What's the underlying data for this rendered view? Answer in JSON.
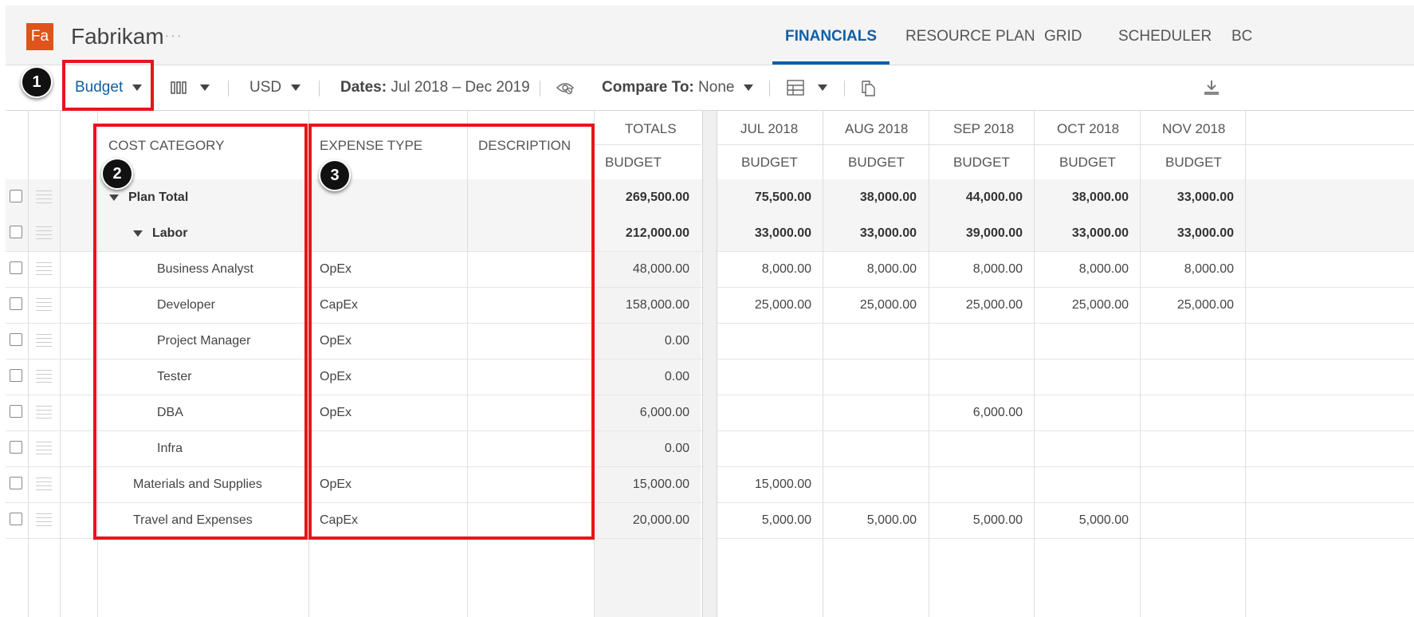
{
  "header": {
    "logo_text": "Fa",
    "project_name": "Fabrikam",
    "more_dots": "···",
    "tabs": [
      "FINANCIALS",
      "RESOURCE PLAN",
      "GRID",
      "SCHEDULER",
      "BC"
    ]
  },
  "toolbar": {
    "view_label": "Budget",
    "currency": "USD",
    "dates_label": "Dates:",
    "dates_value": "Jul 2018 – Dec 2019",
    "compare_label": "Compare To:",
    "compare_value": "None"
  },
  "badges": [
    "1",
    "2",
    "3"
  ],
  "grid": {
    "col_cost_category": "COST CATEGORY",
    "col_expense_type": "EXPENSE TYPE",
    "col_description": "DESCRIPTION",
    "col_totals": "TOTALS",
    "sub_budget": "BUDGET",
    "months": [
      "JUL 2018",
      "AUG 2018",
      "SEP 2018",
      "OCT 2018",
      "NOV 2018"
    ],
    "rows": [
      {
        "category": "Plan Total",
        "expense": "",
        "total": "269,500.00",
        "months": [
          "75,500.00",
          "38,000.00",
          "44,000.00",
          "38,000.00",
          "33,000.00"
        ]
      },
      {
        "category": "Labor",
        "expense": "",
        "total": "212,000.00",
        "months": [
          "33,000.00",
          "33,000.00",
          "39,000.00",
          "33,000.00",
          "33,000.00"
        ]
      },
      {
        "category": "Business Analyst",
        "expense": "OpEx",
        "total": "48,000.00",
        "months": [
          "8,000.00",
          "8,000.00",
          "8,000.00",
          "8,000.00",
          "8,000.00"
        ]
      },
      {
        "category": "Developer",
        "expense": "CapEx",
        "total": "158,000.00",
        "months": [
          "25,000.00",
          "25,000.00",
          "25,000.00",
          "25,000.00",
          "25,000.00"
        ]
      },
      {
        "category": "Project Manager",
        "expense": "OpEx",
        "total": "0.00",
        "months": [
          "",
          "",
          "",
          "",
          ""
        ]
      },
      {
        "category": "Tester",
        "expense": "OpEx",
        "total": "0.00",
        "months": [
          "",
          "",
          "",
          "",
          ""
        ]
      },
      {
        "category": "DBA",
        "expense": "OpEx",
        "total": "6,000.00",
        "months": [
          "",
          "",
          "6,000.00",
          "",
          ""
        ]
      },
      {
        "category": "Infra",
        "expense": "",
        "total": "0.00",
        "months": [
          "",
          "",
          "",
          "",
          ""
        ]
      },
      {
        "category": "Materials and Supplies",
        "expense": "OpEx",
        "total": "15,000.00",
        "months": [
          "15,000.00",
          "",
          "",
          "",
          ""
        ]
      },
      {
        "category": "Travel and Expenses",
        "expense": "CapEx",
        "total": "20,000.00",
        "months": [
          "5,000.00",
          "5,000.00",
          "5,000.00",
          "5,000.00",
          ""
        ]
      }
    ]
  },
  "colors": {
    "accent": "#0f5fa6",
    "logo": "#e0531b",
    "annotation": "#e8141c"
  }
}
